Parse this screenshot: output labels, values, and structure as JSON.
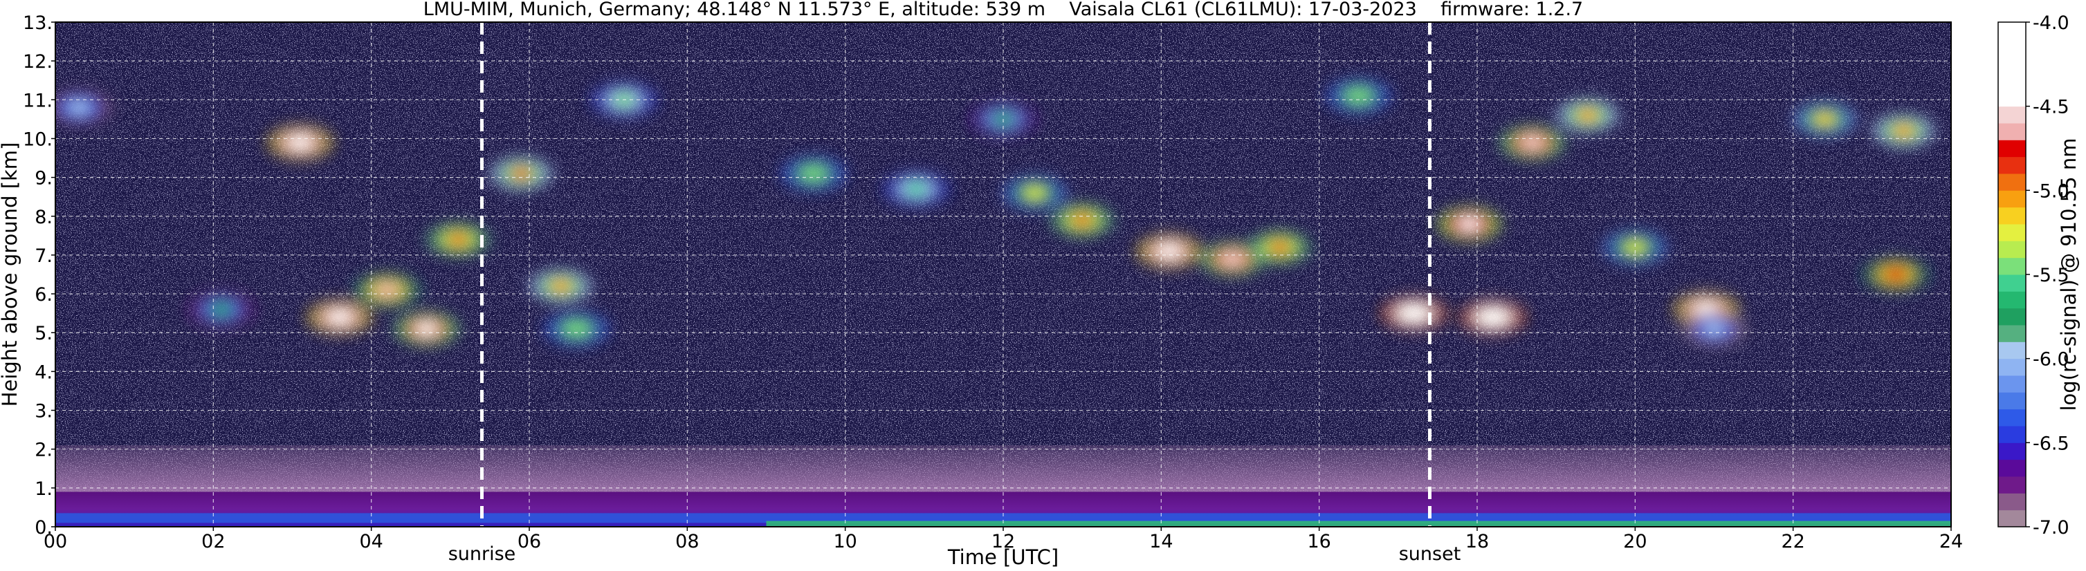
{
  "chart_data": {
    "type": "heatmap",
    "title": "LMU-MIM, Munich, Germany; 48.148° N 11.573° E, altitude: 539 m    Vaisala CL61 (CL61LMU): 17-03-2023    firmware: 1.2.7",
    "xlabel": "Time [UTC]",
    "ylabel": "Height above ground [km]",
    "xlim": [
      0,
      24
    ],
    "ylim": [
      0,
      13
    ],
    "x_ticks": [
      0,
      2,
      4,
      6,
      8,
      10,
      12,
      14,
      16,
      18,
      20,
      22,
      24
    ],
    "x_tick_labels": [
      "00",
      "02",
      "04",
      "06",
      "08",
      "10",
      "12",
      "14",
      "16",
      "18",
      "20",
      "22",
      "24"
    ],
    "y_ticks": [
      0,
      1,
      2,
      3,
      4,
      5,
      6,
      7,
      8,
      9,
      10,
      11,
      12,
      13
    ],
    "y_tick_labels": [
      "0.",
      "1.",
      "2.",
      "3.",
      "4.",
      "5.",
      "6.",
      "7.",
      "8.",
      "9.",
      "10.",
      "11.",
      "12.",
      "13."
    ],
    "grid": true,
    "events": [
      {
        "label": "sunrise",
        "time": 5.4
      },
      {
        "label": "sunset",
        "time": 17.4
      }
    ],
    "colorbar": {
      "label": "log(rc-signal) @ 910.55 nm",
      "range": [
        -7.0,
        -4.0
      ],
      "ticks": [
        -4.0,
        -4.5,
        -5.0,
        -5.5,
        -6.0,
        -6.5,
        -7.0
      ],
      "tick_labels": [
        "-4.0",
        "-4.5",
        "-5.0",
        "-5.5",
        "-6.0",
        "-6.5",
        "-7.0"
      ],
      "colors": [
        "#a3889b",
        "#8a5a8a",
        "#6f1a8a",
        "#5a0a9a",
        "#3a18c8",
        "#2a3ce0",
        "#2e5ae8",
        "#4a7ae8",
        "#6b95ee",
        "#8fb4f2",
        "#a8c8f0",
        "#55b080",
        "#1fa060",
        "#24b870",
        "#40d090",
        "#7be07a",
        "#b8ec50",
        "#e4f040",
        "#f8d020",
        "#f8a010",
        "#f07010",
        "#e83010",
        "#e00000",
        "#f0b0b0",
        "#f4d4d4",
        "#ffffff",
        "#ffffff",
        "#ffffff",
        "#ffffff",
        "#ffffff"
      ]
    },
    "layers": [
      {
        "name": "",
        "x_range": [
          0,
          24
        ],
        "y_range": [
          0,
          0.9
        ]
      },
      {
        "name": "",
        "x_range": [
          0,
          24
        ],
        "y_range": [
          0.9,
          2.1
        ]
      }
    ],
    "clouds": [
      {
        "t": 3.1,
        "h": 9.9,
        "v": -4.2
      },
      {
        "t": 3.6,
        "h": 5.4,
        "v": -4.3
      },
      {
        "t": 4.2,
        "h": 6.1,
        "v": -4.7
      },
      {
        "t": 4.7,
        "h": 5.1,
        "v": -4.5
      },
      {
        "t": 5.1,
        "h": 7.4,
        "v": -4.9
      },
      {
        "t": 5.9,
        "h": 9.1,
        "v": -5.0
      },
      {
        "t": 6.4,
        "h": 6.2,
        "v": -5.1
      },
      {
        "t": 6.6,
        "h": 5.1,
        "v": -5.4
      },
      {
        "t": 2.1,
        "h": 5.6,
        "v": -5.8
      },
      {
        "t": 0.3,
        "h": 10.8,
        "v": -5.9
      },
      {
        "t": 7.2,
        "h": 11.0,
        "v": -5.5
      },
      {
        "t": 9.6,
        "h": 9.1,
        "v": -5.4
      },
      {
        "t": 10.9,
        "h": 8.7,
        "v": -5.6
      },
      {
        "t": 12.0,
        "h": 10.5,
        "v": -5.7
      },
      {
        "t": 12.4,
        "h": 8.6,
        "v": -5.3
      },
      {
        "t": 13.0,
        "h": 7.9,
        "v": -4.9
      },
      {
        "t": 14.1,
        "h": 7.1,
        "v": -4.3
      },
      {
        "t": 14.9,
        "h": 6.9,
        "v": -4.6
      },
      {
        "t": 15.5,
        "h": 7.2,
        "v": -4.9
      },
      {
        "t": 16.5,
        "h": 11.1,
        "v": -5.4
      },
      {
        "t": 17.9,
        "h": 7.8,
        "v": -4.4
      },
      {
        "t": 18.7,
        "h": 9.9,
        "v": -4.6
      },
      {
        "t": 19.4,
        "h": 10.6,
        "v": -5.1
      },
      {
        "t": 20.0,
        "h": 7.2,
        "v": -5.3
      },
      {
        "t": 20.9,
        "h": 5.6,
        "v": -4.2
      },
      {
        "t": 21.0,
        "h": 5.1,
        "v": -6.0
      },
      {
        "t": 22.4,
        "h": 10.5,
        "v": -5.2
      },
      {
        "t": 23.4,
        "h": 10.2,
        "v": -5.1
      },
      {
        "t": 23.3,
        "h": 6.5,
        "v": -4.8
      },
      {
        "t": 17.2,
        "h": 5.5,
        "v": -4.1
      },
      {
        "t": 18.2,
        "h": 5.4,
        "v": -4.1
      }
    ]
  }
}
